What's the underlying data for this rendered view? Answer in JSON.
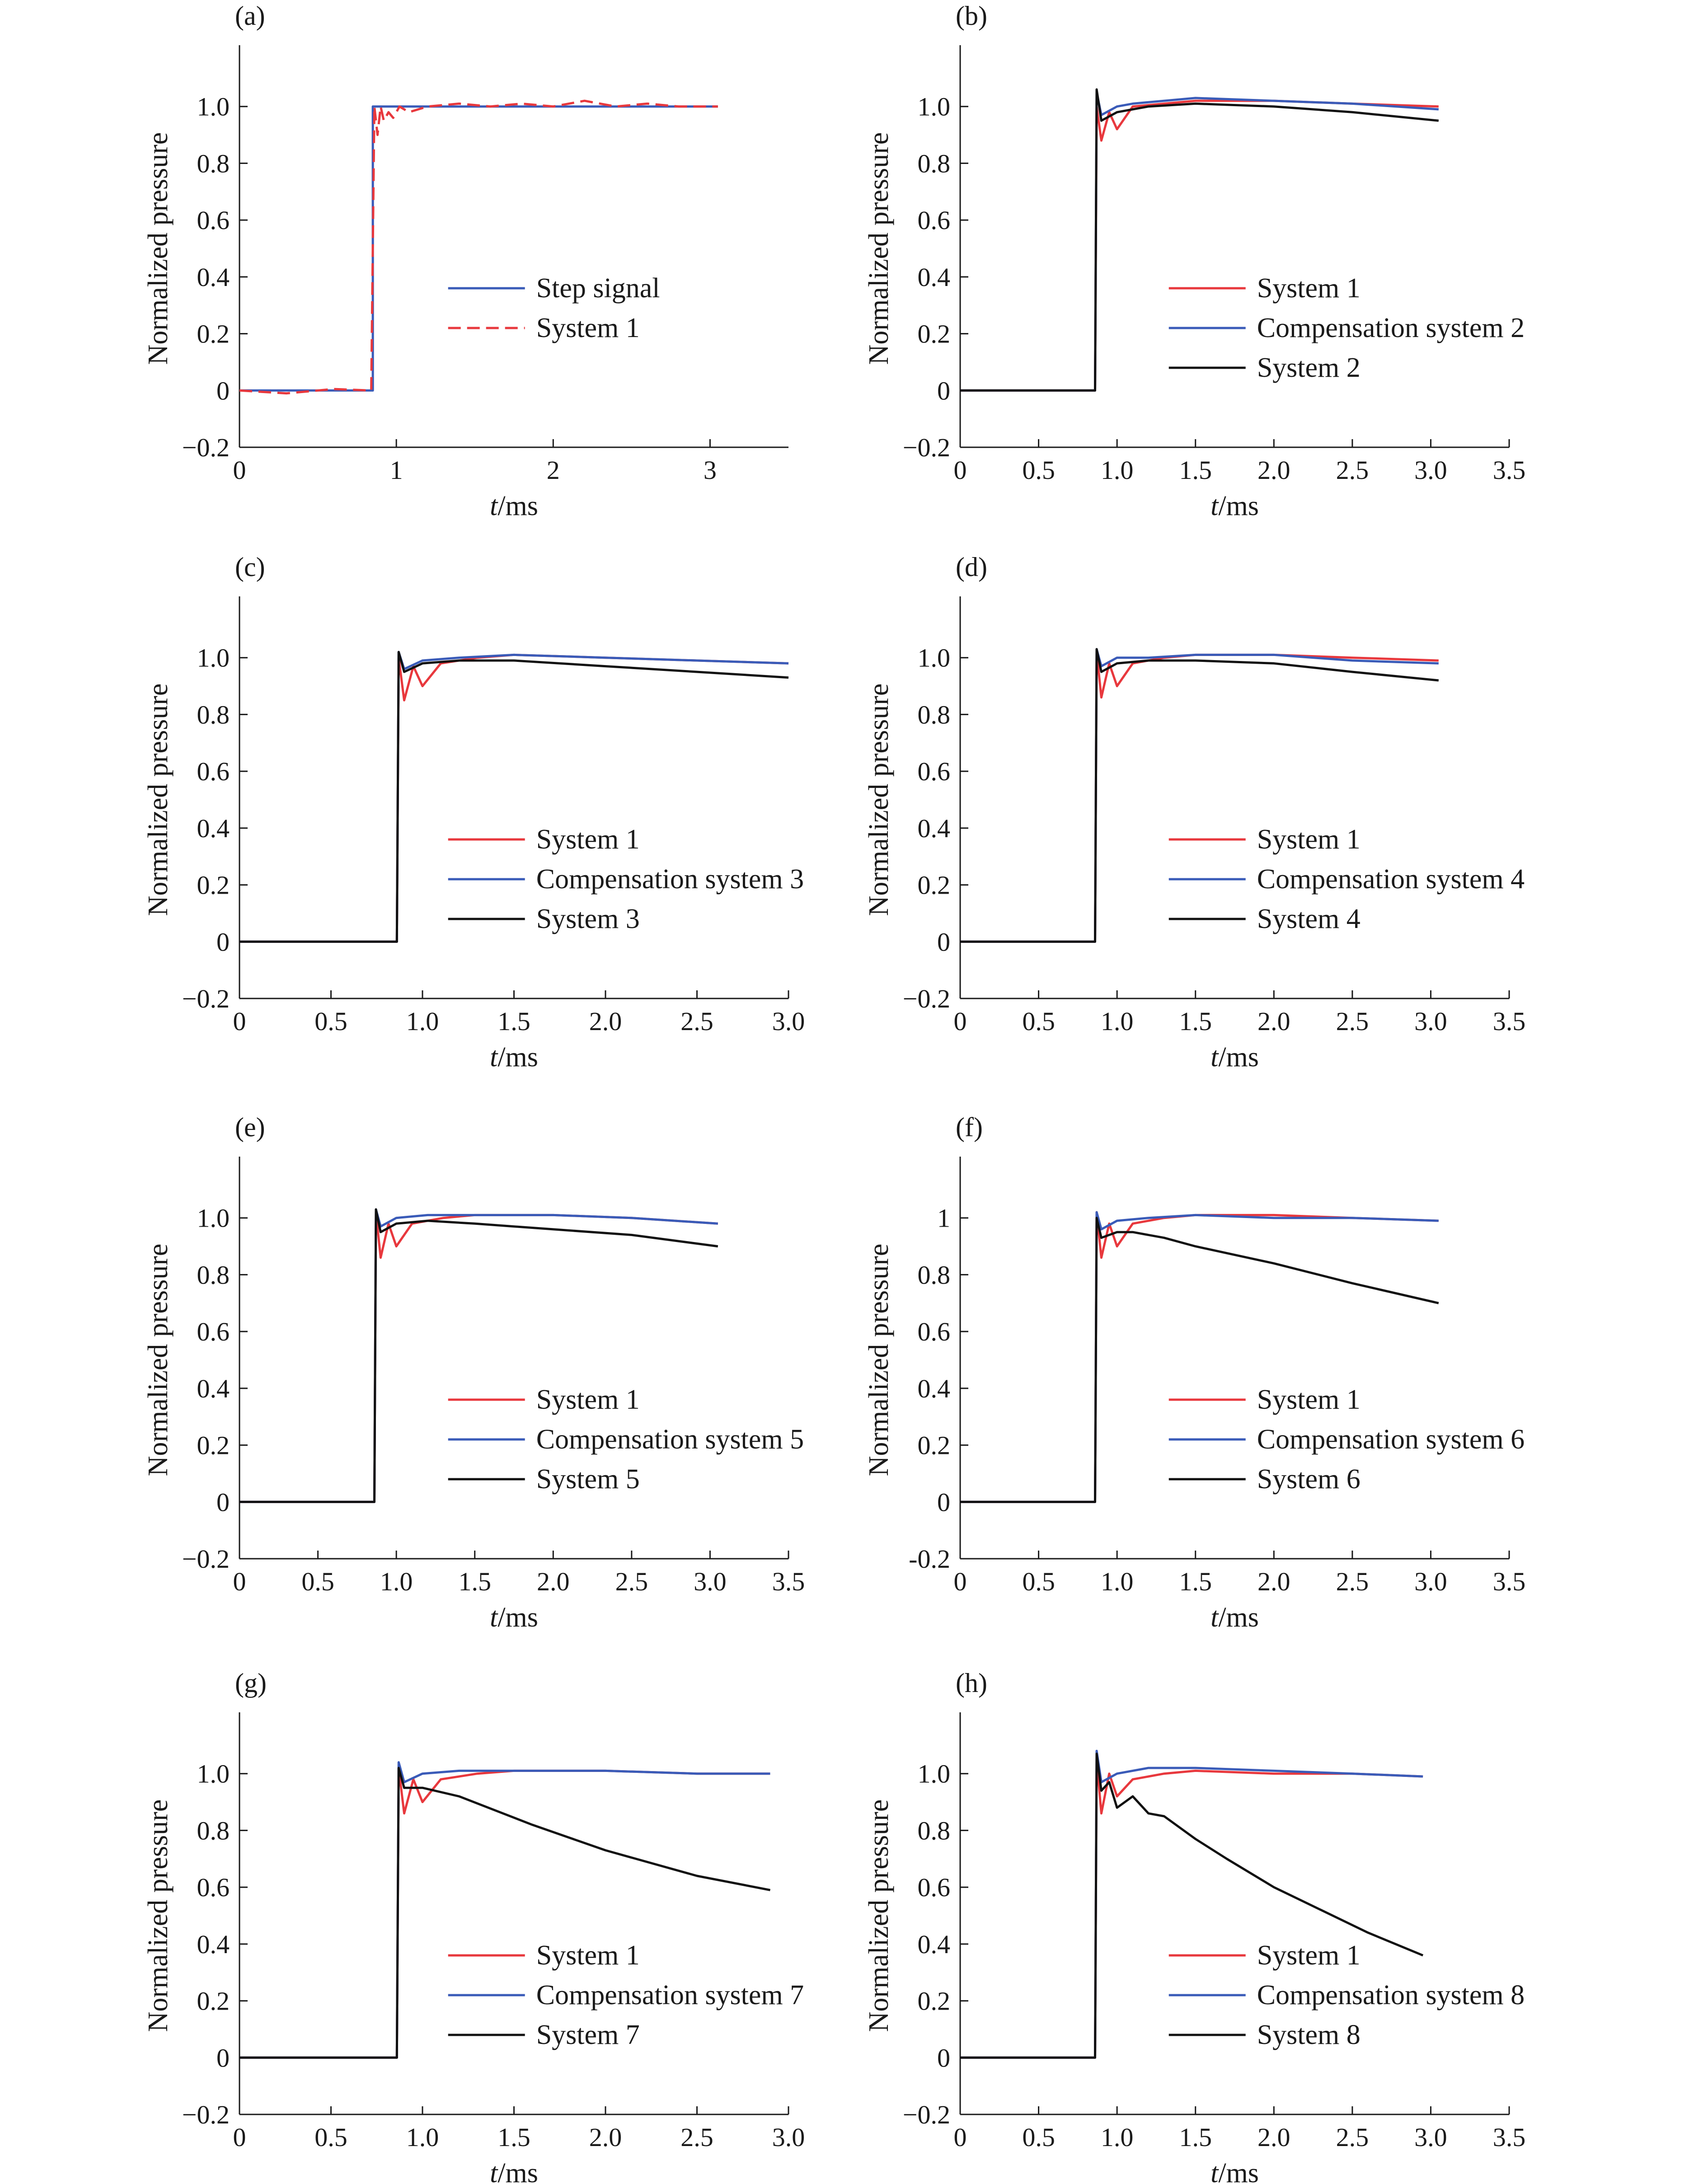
{
  "colors": {
    "red": "#e8383d",
    "blue": "#3a5bb8",
    "black": "#111111",
    "axis": "#1a1a1a"
  },
  "chart_data": [
    {
      "id": "a",
      "label": "(a)",
      "type": "line",
      "xlabel": "t/ms",
      "ylabel": "Normalized pressure",
      "xlim": [
        0,
        3.5
      ],
      "ylim": [
        -0.2,
        1.2
      ],
      "xticks": [
        0,
        1,
        2,
        3
      ],
      "xtick_labels": [
        "0",
        "1",
        "2",
        "3"
      ],
      "yticks": [
        -0.2,
        0,
        0.2,
        0.4,
        0.6,
        0.8,
        1.0
      ],
      "ytick_labels": [
        "−0.2",
        "0",
        "0.2",
        "0.4",
        "0.6",
        "0.8",
        "1.0"
      ],
      "legend_position": "lower-right",
      "series": [
        {
          "name": "Step signal",
          "color": "#3a5bb8",
          "style": "solid",
          "x": [
            0,
            0.85,
            0.85,
            3.05
          ],
          "y": [
            0,
            0,
            1.0,
            1.0
          ]
        },
        {
          "name": "System 1",
          "color": "#e8383d",
          "style": "dashed",
          "x": [
            0,
            0.3,
            0.6,
            0.84,
            0.86,
            0.88,
            0.9,
            0.92,
            0.95,
            0.98,
            1.02,
            1.08,
            1.2,
            1.4,
            1.6,
            1.8,
            2.0,
            2.2,
            2.4,
            2.6,
            2.8,
            3.05
          ],
          "y": [
            0,
            -0.01,
            0.005,
            0,
            1.0,
            0.9,
            1.0,
            0.95,
            0.98,
            0.96,
            1.0,
            0.98,
            1.0,
            1.01,
            1.0,
            1.01,
            1.0,
            1.02,
            1.0,
            1.01,
            1.0,
            1.0
          ]
        }
      ]
    },
    {
      "id": "b",
      "label": "(b)",
      "type": "line",
      "xlabel": "t/ms",
      "ylabel": "Normalized pressure",
      "xlim": [
        0,
        3.5
      ],
      "ylim": [
        -0.2,
        1.2
      ],
      "xticks": [
        0,
        0.5,
        1.0,
        1.5,
        2.0,
        2.5,
        3.0,
        3.5
      ],
      "xtick_labels": [
        "0",
        "0.5",
        "1.0",
        "1.5",
        "2.0",
        "2.5",
        "3.0",
        "3.5"
      ],
      "yticks": [
        -0.2,
        0,
        0.2,
        0.4,
        0.6,
        0.8,
        1.0
      ],
      "ytick_labels": [
        "−0.2",
        "0",
        "0.2",
        "0.4",
        "0.6",
        "0.8",
        "1.0"
      ],
      "legend_position": "lower-right",
      "series": [
        {
          "name": "System 1",
          "color": "#e8383d",
          "x": [
            0,
            0.86,
            0.87,
            0.9,
            0.95,
            1.0,
            1.1,
            1.3,
            1.5,
            2.0,
            2.5,
            3.05
          ],
          "y": [
            0,
            0,
            1.0,
            0.88,
            0.98,
            0.92,
            1.0,
            1.01,
            1.02,
            1.02,
            1.01,
            1.0
          ]
        },
        {
          "name": "Compensation system 2",
          "color": "#3a5bb8",
          "x": [
            0,
            0.86,
            0.87,
            0.9,
            1.0,
            1.1,
            1.3,
            1.5,
            2.0,
            2.5,
            3.05
          ],
          "y": [
            0,
            0,
            1.05,
            0.97,
            1.0,
            1.01,
            1.02,
            1.03,
            1.02,
            1.01,
            0.99
          ]
        },
        {
          "name": "System 2",
          "color": "#111111",
          "x": [
            0,
            0.86,
            0.87,
            0.9,
            1.0,
            1.2,
            1.5,
            2.0,
            2.5,
            3.05
          ],
          "y": [
            0,
            0,
            1.06,
            0.95,
            0.98,
            1.0,
            1.01,
            1.0,
            0.98,
            0.95
          ]
        }
      ]
    },
    {
      "id": "c",
      "label": "(c)",
      "type": "line",
      "xlabel": "t/ms",
      "ylabel": "Normalized pressure",
      "xlim": [
        0,
        3.0
      ],
      "ylim": [
        -0.2,
        1.2
      ],
      "xticks": [
        0,
        0.5,
        1.0,
        1.5,
        2.0,
        2.5,
        3.0
      ],
      "xtick_labels": [
        "0",
        "0.5",
        "1.0",
        "1.5",
        "2.0",
        "2.5",
        "3.0"
      ],
      "yticks": [
        -0.2,
        0,
        0.2,
        0.4,
        0.6,
        0.8,
        1.0
      ],
      "ytick_labels": [
        "−0.2",
        "0",
        "0.2",
        "0.4",
        "0.6",
        "0.8",
        "1.0"
      ],
      "legend_position": "lower-right",
      "series": [
        {
          "name": "System 1",
          "color": "#e8383d",
          "x": [
            0,
            0.86,
            0.87,
            0.9,
            0.95,
            1.0,
            1.1,
            1.3,
            1.5,
            2.0,
            2.5,
            3.0
          ],
          "y": [
            0,
            0,
            1.0,
            0.85,
            0.97,
            0.9,
            0.98,
            1.0,
            1.01,
            1.0,
            0.99,
            0.98
          ]
        },
        {
          "name": "Compensation system 3",
          "color": "#3a5bb8",
          "x": [
            0,
            0.86,
            0.87,
            0.9,
            1.0,
            1.2,
            1.5,
            2.0,
            2.5,
            3.0
          ],
          "y": [
            0,
            0,
            1.02,
            0.96,
            0.99,
            1.0,
            1.01,
            1.0,
            0.99,
            0.98
          ]
        },
        {
          "name": "System 3",
          "color": "#111111",
          "x": [
            0,
            0.86,
            0.87,
            0.9,
            1.0,
            1.2,
            1.5,
            2.0,
            2.5,
            3.0
          ],
          "y": [
            0,
            0,
            1.02,
            0.95,
            0.98,
            0.99,
            0.99,
            0.97,
            0.95,
            0.93
          ]
        }
      ]
    },
    {
      "id": "d",
      "label": "(d)",
      "type": "line",
      "xlabel": "t/ms",
      "ylabel": "Normalized pressure",
      "xlim": [
        0,
        3.5
      ],
      "ylim": [
        -0.2,
        1.2
      ],
      "xticks": [
        0,
        0.5,
        1.0,
        1.5,
        2.0,
        2.5,
        3.0,
        3.5
      ],
      "xtick_labels": [
        "0",
        "0.5",
        "1.0",
        "1.5",
        "2.0",
        "2.5",
        "3.0",
        "3.5"
      ],
      "yticks": [
        -0.2,
        0,
        0.2,
        0.4,
        0.6,
        0.8,
        1.0
      ],
      "ytick_labels": [
        "−0.2",
        "0",
        "0.2",
        "0.4",
        "0.6",
        "0.8",
        "1.0"
      ],
      "legend_position": "lower-right",
      "series": [
        {
          "name": "System 1",
          "color": "#e8383d",
          "x": [
            0,
            0.86,
            0.87,
            0.9,
            0.95,
            1.0,
            1.1,
            1.3,
            1.5,
            2.0,
            2.5,
            3.05
          ],
          "y": [
            0,
            0,
            1.02,
            0.86,
            0.98,
            0.9,
            0.98,
            1.0,
            1.01,
            1.01,
            1.0,
            0.99
          ]
        },
        {
          "name": "Compensation system 4",
          "color": "#3a5bb8",
          "x": [
            0,
            0.86,
            0.87,
            0.9,
            1.0,
            1.2,
            1.5,
            2.0,
            2.5,
            3.05
          ],
          "y": [
            0,
            0,
            1.03,
            0.97,
            1.0,
            1.0,
            1.01,
            1.01,
            0.99,
            0.98
          ]
        },
        {
          "name": "System 4",
          "color": "#111111",
          "x": [
            0,
            0.86,
            0.87,
            0.9,
            1.0,
            1.2,
            1.5,
            2.0,
            2.5,
            3.05
          ],
          "y": [
            0,
            0,
            1.03,
            0.95,
            0.98,
            0.99,
            0.99,
            0.98,
            0.95,
            0.92
          ]
        }
      ]
    },
    {
      "id": "e",
      "label": "(e)",
      "type": "line",
      "xlabel": "t/ms",
      "ylabel": "Normalized pressure",
      "xlim": [
        0,
        3.5
      ],
      "ylim": [
        -0.2,
        1.2
      ],
      "xticks": [
        0,
        0.5,
        1.0,
        1.5,
        2.0,
        2.5,
        3.0,
        3.5
      ],
      "xtick_labels": [
        "0",
        "0.5",
        "1.0",
        "1.5",
        "2.0",
        "2.5",
        "3.0",
        "3.5"
      ],
      "yticks": [
        -0.2,
        0,
        0.2,
        0.4,
        0.6,
        0.8,
        1.0
      ],
      "ytick_labels": [
        "−0.2",
        "0",
        "0.2",
        "0.4",
        "0.6",
        "0.8",
        "1.0"
      ],
      "legend_position": "lower-right",
      "series": [
        {
          "name": "System 1",
          "color": "#e8383d",
          "x": [
            0,
            0.86,
            0.87,
            0.9,
            0.95,
            1.0,
            1.1,
            1.3,
            1.5,
            2.0,
            2.5,
            3.05
          ],
          "y": [
            0,
            0,
            1.02,
            0.86,
            0.98,
            0.9,
            0.98,
            1.0,
            1.01,
            1.01,
            1.0,
            0.98
          ]
        },
        {
          "name": "Compensation system 5",
          "color": "#3a5bb8",
          "x": [
            0,
            0.86,
            0.87,
            0.9,
            1.0,
            1.2,
            1.5,
            2.0,
            2.5,
            3.05
          ],
          "y": [
            0,
            0,
            1.03,
            0.97,
            1.0,
            1.01,
            1.01,
            1.01,
            1.0,
            0.98
          ]
        },
        {
          "name": "System 5",
          "color": "#111111",
          "x": [
            0,
            0.86,
            0.87,
            0.9,
            1.0,
            1.2,
            1.5,
            2.0,
            2.5,
            3.05
          ],
          "y": [
            0,
            0,
            1.03,
            0.95,
            0.98,
            0.99,
            0.98,
            0.96,
            0.94,
            0.9
          ]
        }
      ]
    },
    {
      "id": "f",
      "label": "(f)",
      "type": "line",
      "xlabel": "t/ms",
      "ylabel": "Normalized pressure",
      "xlim": [
        0,
        3.5
      ],
      "ylim": [
        -0.2,
        1.2
      ],
      "xticks": [
        0,
        0.5,
        1.0,
        1.5,
        2.0,
        2.5,
        3.0,
        3.5
      ],
      "xtick_labels": [
        "0",
        "0.5",
        "1.0",
        "1.5",
        "2.0",
        "2.5",
        "3.0",
        "3.5"
      ],
      "yticks": [
        -0.2,
        0,
        0.2,
        0.4,
        0.6,
        0.8,
        1.0
      ],
      "ytick_labels": [
        "-0.2",
        "0",
        "0.2",
        "0.4",
        "0.6",
        "0.8",
        "1"
      ],
      "legend_position": "lower-right",
      "series": [
        {
          "name": "System 1",
          "color": "#e8383d",
          "x": [
            0,
            0.86,
            0.87,
            0.9,
            0.95,
            1.0,
            1.1,
            1.3,
            1.5,
            2.0,
            2.5,
            3.05
          ],
          "y": [
            0,
            0,
            1.02,
            0.86,
            0.98,
            0.9,
            0.98,
            1.0,
            1.01,
            1.01,
            1.0,
            0.99
          ]
        },
        {
          "name": "Compensation system 6",
          "color": "#3a5bb8",
          "x": [
            0,
            0.86,
            0.87,
            0.9,
            1.0,
            1.2,
            1.5,
            2.0,
            2.5,
            3.05
          ],
          "y": [
            0,
            0,
            1.02,
            0.96,
            0.99,
            1.0,
            1.01,
            1.0,
            1.0,
            0.99
          ]
        },
        {
          "name": "System 6",
          "color": "#111111",
          "x": [
            0,
            0.86,
            0.87,
            0.9,
            1.0,
            1.1,
            1.3,
            1.5,
            2.0,
            2.5,
            3.05
          ],
          "y": [
            0,
            0,
            1.0,
            0.93,
            0.95,
            0.95,
            0.93,
            0.9,
            0.84,
            0.77,
            0.7
          ]
        }
      ]
    },
    {
      "id": "g",
      "label": "(g)",
      "type": "line",
      "xlabel": "t/ms",
      "ylabel": "Normalized pressure",
      "xlim": [
        0,
        3.0
      ],
      "ylim": [
        -0.2,
        1.2
      ],
      "xticks": [
        0,
        0.5,
        1.0,
        1.5,
        2.0,
        2.5,
        3.0
      ],
      "xtick_labels": [
        "0",
        "0.5",
        "1.0",
        "1.5",
        "2.0",
        "2.5",
        "3.0"
      ],
      "yticks": [
        -0.2,
        0,
        0.2,
        0.4,
        0.6,
        0.8,
        1.0
      ],
      "ytick_labels": [
        "−0.2",
        "0",
        "0.2",
        "0.4",
        "0.6",
        "0.8",
        "1.0"
      ],
      "legend_position": "lower-right",
      "series": [
        {
          "name": "System 1",
          "color": "#e8383d",
          "x": [
            0,
            0.86,
            0.87,
            0.9,
            0.95,
            1.0,
            1.1,
            1.3,
            1.5,
            2.0,
            2.5,
            2.9
          ],
          "y": [
            0,
            0,
            1.02,
            0.86,
            0.98,
            0.9,
            0.98,
            1.0,
            1.01,
            1.01,
            1.0,
            1.0
          ]
        },
        {
          "name": "Compensation system 7",
          "color": "#3a5bb8",
          "x": [
            0,
            0.86,
            0.87,
            0.9,
            1.0,
            1.2,
            1.5,
            2.0,
            2.5,
            2.9
          ],
          "y": [
            0,
            0,
            1.04,
            0.97,
            1.0,
            1.01,
            1.01,
            1.01,
            1.0,
            1.0
          ]
        },
        {
          "name": "System 7",
          "color": "#111111",
          "x": [
            0,
            0.86,
            0.87,
            0.9,
            1.0,
            1.2,
            1.4,
            1.6,
            2.0,
            2.5,
            2.9
          ],
          "y": [
            0,
            0,
            1.02,
            0.95,
            0.95,
            0.92,
            0.87,
            0.82,
            0.73,
            0.64,
            0.59
          ]
        }
      ]
    },
    {
      "id": "h",
      "label": "(h)",
      "type": "line",
      "xlabel": "t/ms",
      "ylabel": "Normalized pressure",
      "xlim": [
        0,
        3.5
      ],
      "ylim": [
        -0.2,
        1.2
      ],
      "xticks": [
        0,
        0.5,
        1.0,
        1.5,
        2.0,
        2.5,
        3.0,
        3.5
      ],
      "xtick_labels": [
        "0",
        "0.5",
        "1.0",
        "1.5",
        "2.0",
        "2.5",
        "3.0",
        "3.5"
      ],
      "yticks": [
        -0.2,
        0,
        0.2,
        0.4,
        0.6,
        0.8,
        1.0
      ],
      "ytick_labels": [
        "−0.2",
        "0",
        "0.2",
        "0.4",
        "0.6",
        "0.8",
        "1.0"
      ],
      "legend_position": "lower-right",
      "series": [
        {
          "name": "System 1",
          "color": "#e8383d",
          "x": [
            0,
            0.86,
            0.87,
            0.9,
            0.95,
            1.0,
            1.1,
            1.3,
            1.5,
            2.0,
            2.5,
            2.95
          ],
          "y": [
            0,
            0,
            1.05,
            0.86,
            1.0,
            0.92,
            0.98,
            1.0,
            1.01,
            1.0,
            1.0,
            0.99
          ]
        },
        {
          "name": "Compensation system 8",
          "color": "#3a5bb8",
          "x": [
            0,
            0.86,
            0.87,
            0.9,
            1.0,
            1.2,
            1.5,
            2.0,
            2.5,
            2.95
          ],
          "y": [
            0,
            0,
            1.08,
            0.97,
            1.0,
            1.02,
            1.02,
            1.01,
            1.0,
            0.99
          ]
        },
        {
          "name": "System 8",
          "color": "#111111",
          "x": [
            0,
            0.86,
            0.87,
            0.9,
            0.95,
            1.0,
            1.1,
            1.2,
            1.3,
            1.5,
            1.7,
            2.0,
            2.3,
            2.6,
            2.95
          ],
          "y": [
            0,
            0,
            1.07,
            0.94,
            0.97,
            0.88,
            0.92,
            0.86,
            0.85,
            0.77,
            0.7,
            0.6,
            0.52,
            0.44,
            0.36
          ]
        }
      ]
    }
  ]
}
